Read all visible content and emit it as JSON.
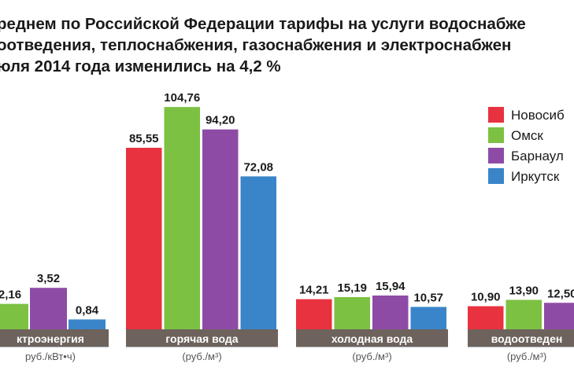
{
  "title": {
    "line1": "реднем по Российской Федерации тарифы на услуги водоснабже",
    "line2": "оотведения, теплоснабжения, газоснабжения и электроснабжен",
    "line3": "юля 2014 года изменились на  4,2 %"
  },
  "chart_data": {
    "type": "bar",
    "title": "реднем по Российской Федерации тарифы на услуги водоснабже оотведения, теплоснабжения, газоснабжения и электроснабжен юля 2014 года изменились на  4,2 %",
    "categories": [
      "ктроэнергия",
      "горячая вода",
      "холодная вода",
      "водоотведен"
    ],
    "category_units": [
      "руб./кВт•ч)",
      "(руб./м³)",
      "(руб./м³)",
      "(руб./м³)"
    ],
    "series": [
      {
        "name": "Новосиб",
        "color": "#e8323f",
        "values": [
          null,
          85.55,
          14.21,
          10.9
        ]
      },
      {
        "name": "Омск",
        "color": "#7cc142",
        "values": [
          2.16,
          104.76,
          15.19,
          13.9
        ]
      },
      {
        "name": "Барнаул",
        "color": "#8e4ba6",
        "values": [
          3.52,
          94.2,
          15.94,
          12.5
        ]
      },
      {
        "name": "Иркутск",
        "color": "#3a85c9",
        "values": [
          0.84,
          72.08,
          10.57,
          null
        ]
      }
    ],
    "value_labels": [
      [
        null,
        "85,55",
        "14,21",
        "10,90"
      ],
      [
        "2,16",
        "104,76",
        "15,19",
        "13,90"
      ],
      [
        "3,52",
        "94,20",
        "15,94",
        "12,50"
      ],
      [
        "0,84",
        "72,08",
        "10,57",
        null
      ]
    ],
    "label_bar_color": "#6d625c",
    "legend_position": "top-right",
    "grid": false
  }
}
